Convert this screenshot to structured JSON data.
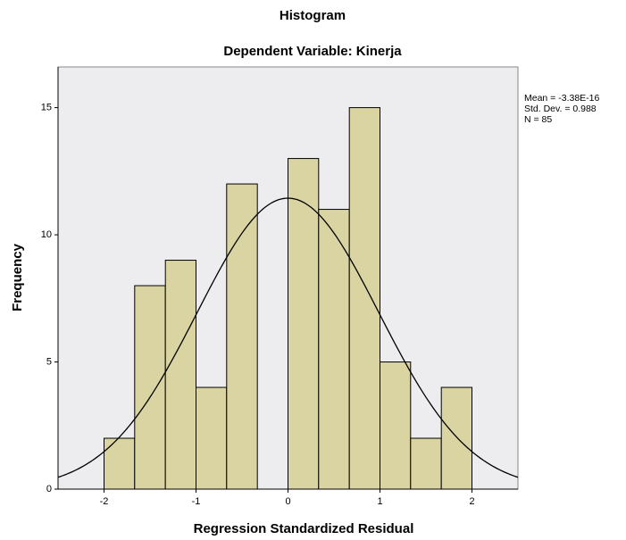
{
  "chart_data": {
    "type": "histogram",
    "title": "Histogram",
    "subtitle": "Dependent Variable: Kinerja",
    "x_label": "Regression Standardized Residual",
    "y_label": "Frequency",
    "bins": [
      -2,
      -1.667,
      -1.333,
      -1,
      -0.667,
      -0.333,
      0,
      0.333,
      0.667,
      1,
      1.333,
      1.667,
      2
    ],
    "values": [
      2,
      8,
      9,
      4,
      12,
      0,
      13,
      11,
      15,
      5,
      2,
      4
    ],
    "color": "#d9d4a2",
    "xlim": [
      -2.5,
      2.5
    ],
    "xticks": [
      -2,
      -1,
      0,
      1,
      2
    ],
    "ylim": [
      0,
      16.6
    ],
    "yticks": [
      0,
      5,
      10,
      15
    ],
    "normal_curve": {
      "mean": -3.38e-16,
      "std_dev": 0.988,
      "n": 85
    },
    "annotations": [
      "Mean = -3.38E-16",
      "Std. Dev. = 0.988",
      "N = 85"
    ]
  }
}
